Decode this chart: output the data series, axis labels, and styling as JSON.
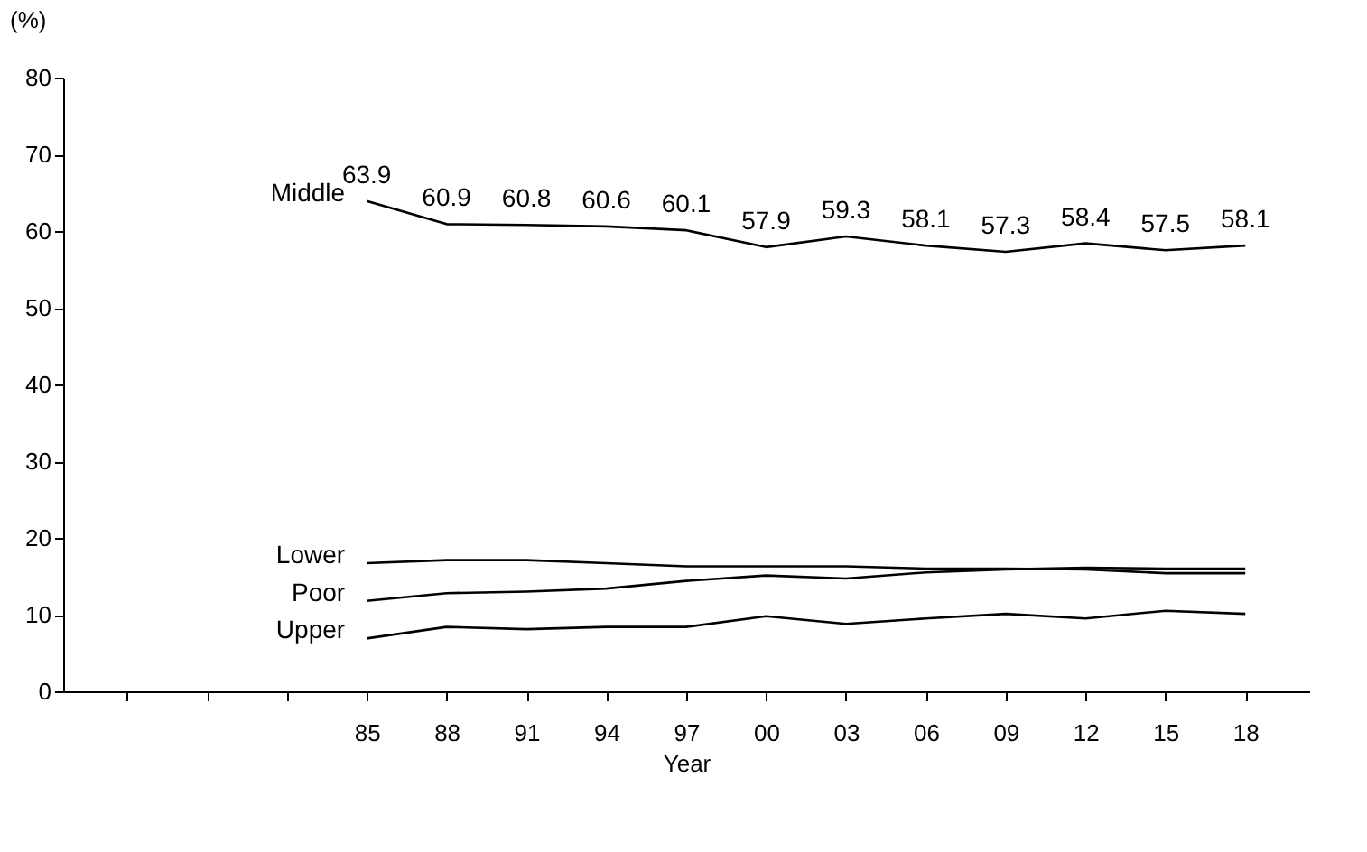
{
  "chart_data": {
    "type": "line",
    "xlabel": "Year",
    "ylabel": "(%)",
    "categories": [
      null,
      null,
      null,
      "85",
      "88",
      "91",
      "94",
      "97",
      "00",
      "03",
      "06",
      "09",
      "12",
      "15",
      "18"
    ],
    "series": [
      {
        "name": "Middle",
        "color": "#000000",
        "values": [
          null,
          null,
          null,
          63.9,
          60.9,
          60.8,
          60.6,
          60.1,
          57.9,
          59.3,
          58.1,
          57.3,
          58.4,
          57.5,
          58.1
        ],
        "value_labels": [
          null,
          null,
          null,
          "63.9",
          "60.9",
          "60.8",
          "60.6",
          "60.1",
          "57.9",
          "59.3",
          "58.1",
          "57.3",
          "58.4",
          "57.5",
          "58.1"
        ]
      },
      {
        "name": "Lower",
        "color": "#000000",
        "values": [
          null,
          null,
          null,
          16.7,
          17.1,
          17.1,
          16.7,
          16.3,
          16.3,
          16.3,
          16.0,
          16.0,
          15.9,
          15.4,
          15.4
        ]
      },
      {
        "name": "Poor",
        "color": "#000000",
        "values": [
          null,
          null,
          null,
          11.8,
          12.8,
          13.0,
          13.4,
          14.4,
          15.1,
          14.7,
          15.5,
          15.9,
          16.1,
          16.0,
          16.0
        ]
      },
      {
        "name": "Upper",
        "color": "#000000",
        "values": [
          null,
          null,
          null,
          6.9,
          8.4,
          8.1,
          8.4,
          8.4,
          9.8,
          8.8,
          9.5,
          10.1,
          9.5,
          10.5,
          10.1
        ]
      }
    ],
    "ylim": [
      0,
      80
    ],
    "yticks": [
      0,
      10,
      20,
      30,
      40,
      50,
      60,
      70,
      80
    ],
    "grid": false,
    "legend": false,
    "marker": "none",
    "line_style": "solid"
  }
}
